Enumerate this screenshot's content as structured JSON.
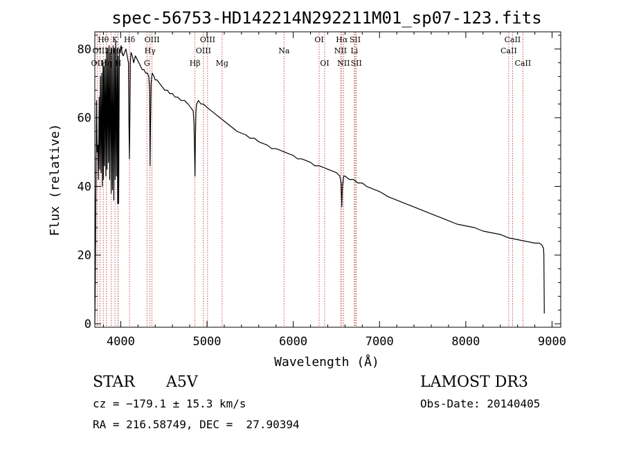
{
  "chart_data": {
    "type": "line",
    "title": "spec-56753-HD142214N292211M01_sp07-123.fits",
    "xlabel": "Wavelength (Å)",
    "ylabel": "Flux (relative)",
    "xlim": [
      3700,
      9100
    ],
    "ylim": [
      -1,
      85
    ],
    "xticks": [
      4000,
      5000,
      6000,
      7000,
      8000,
      9000
    ],
    "yticks": [
      0,
      20,
      40,
      60,
      80
    ],
    "grid": false,
    "line_color": "#000000",
    "marker_color": "#b22222",
    "series": [
      {
        "name": "spectrum",
        "x": [
          3700,
          3705,
          3712,
          3720,
          3727,
          3735,
          3742,
          3750,
          3757,
          3765,
          3772,
          3780,
          3787,
          3795,
          3800,
          3806,
          3812,
          3820,
          3828,
          3835,
          3842,
          3850,
          3857,
          3865,
          3872,
          3880,
          3889,
          3896,
          3905,
          3912,
          3920,
          3928,
          3935,
          3942,
          3950,
          3958,
          3964,
          3970,
          3976,
          3985,
          3995,
          4005,
          4015,
          4030,
          4045,
          4060,
          4075,
          4090,
          4095,
          4101,
          4106,
          4112,
          4120,
          4135,
          4150,
          4170,
          4190,
          4210,
          4230,
          4250,
          4270,
          4290,
          4310,
          4325,
          4335,
          4340,
          4345,
          4352,
          4365,
          4385,
          4400,
          4420,
          4450,
          4480,
          4510,
          4540,
          4570,
          4600,
          4630,
          4660,
          4700,
          4740,
          4780,
          4810,
          4840,
          4850,
          4856,
          4861,
          4866,
          4872,
          4880,
          4900,
          4930,
          4960,
          5000,
          5050,
          5100,
          5150,
          5200,
          5250,
          5300,
          5350,
          5400,
          5450,
          5500,
          5550,
          5600,
          5650,
          5700,
          5750,
          5800,
          5850,
          5900,
          5950,
          6000,
          6050,
          6100,
          6150,
          6200,
          6250,
          6300,
          6350,
          6400,
          6450,
          6500,
          6540,
          6555,
          6563,
          6570,
          6585,
          6600,
          6650,
          6700,
          6750,
          6800,
          6850,
          6900,
          6950,
          7000,
          7100,
          7200,
          7300,
          7400,
          7500,
          7600,
          7700,
          7800,
          7900,
          8000,
          8100,
          8200,
          8300,
          8400,
          8500,
          8600,
          8700,
          8800,
          8850,
          8880,
          8900,
          8905,
          8910
        ],
        "y": [
          0,
          12,
          38,
          65,
          50,
          52,
          42,
          66,
          45,
          72,
          44,
          73,
          40,
          76,
          42,
          75,
          46,
          77,
          43,
          79,
          45,
          80,
          47,
          81,
          42,
          79,
          38,
          80,
          39,
          81,
          36,
          80,
          42,
          82,
          43,
          80,
          35,
          78,
          35,
          80,
          79,
          81,
          79,
          78,
          79,
          80,
          78,
          76,
          60,
          48,
          60,
          76,
          79,
          78,
          76,
          78,
          77,
          76,
          75,
          74,
          74,
          73,
          73,
          72,
          68,
          46,
          58,
          70,
          73,
          72,
          71,
          71,
          70,
          69,
          68,
          68,
          67,
          67,
          66,
          66,
          65,
          65,
          64,
          63,
          62,
          58,
          50,
          43,
          54,
          62,
          64,
          65,
          64,
          64,
          63,
          62,
          61,
          60,
          59,
          58,
          57,
          56,
          55.5,
          55,
          54,
          54,
          53,
          52.5,
          52,
          51,
          51,
          50.5,
          50,
          49.5,
          49,
          48,
          48,
          47.5,
          47,
          46,
          46,
          45.5,
          45,
          44.5,
          44,
          43,
          41,
          34,
          40,
          43,
          43,
          42,
          42,
          41,
          41,
          40,
          39.5,
          39,
          38.5,
          37,
          36,
          35,
          34,
          33,
          32,
          31,
          30,
          29,
          28.5,
          28,
          27,
          26.5,
          26,
          25,
          24.5,
          24,
          23.5,
          23.5,
          23,
          22,
          20,
          3
        ]
      }
    ],
    "line_markers": [
      {
        "label": "OII",
        "x": 3727,
        "row": 3
      },
      {
        "label": "Hθ",
        "x": 3798,
        "row": 1
      },
      {
        "label": "OIII",
        "x": 3760,
        "row": 2
      },
      {
        "label": "Hη",
        "x": 3835,
        "row": 3
      },
      {
        "label": "Hε",
        "x": 3889,
        "row": 2
      },
      {
        "label": "K",
        "x": 3934,
        "row": 1
      },
      {
        "label": "H",
        "x": 3969,
        "row": 3
      },
      {
        "label": "Hζ",
        "x": 3970,
        "row": 2
      },
      {
        "label": "Hδ",
        "x": 4102,
        "row": 1
      },
      {
        "label": "G",
        "x": 4304,
        "row": 3
      },
      {
        "label": "Hγ",
        "x": 4340,
        "row": 2
      },
      {
        "label": "OIII",
        "x": 4363,
        "row": 1
      },
      {
        "label": "Hβ",
        "x": 4861,
        "row": 3
      },
      {
        "label": "OIII",
        "x": 4959,
        "row": 2
      },
      {
        "label": "OIII",
        "x": 5007,
        "row": 1
      },
      {
        "label": "Mg",
        "x": 5175,
        "row": 3
      },
      {
        "label": "Na",
        "x": 5893,
        "row": 2
      },
      {
        "label": "OI",
        "x": 6300,
        "row": 1
      },
      {
        "label": "OI",
        "x": 6364,
        "row": 3
      },
      {
        "label": "NII",
        "x": 6548,
        "row": 2
      },
      {
        "label": "Hα",
        "x": 6563,
        "row": 1
      },
      {
        "label": "NII",
        "x": 6583,
        "row": 3
      },
      {
        "label": "Li",
        "x": 6708,
        "row": 2
      },
      {
        "label": "SII",
        "x": 6717,
        "row": 1
      },
      {
        "label": "SII",
        "x": 6731,
        "row": 3
      },
      {
        "label": "CaII",
        "x": 8498,
        "row": 2
      },
      {
        "label": "CaII",
        "x": 8542,
        "row": 1
      },
      {
        "label": "CaII",
        "x": 8662,
        "row": 3
      }
    ]
  },
  "info": {
    "object_type": "STAR",
    "subclass": "A5V",
    "survey": "LAMOST DR3",
    "cz": "cz = −179.1 ± 15.3 km/s",
    "obs_date": "Obs-Date: 20140405",
    "coords": "RA = 216.58749, DEC =  27.90394"
  }
}
